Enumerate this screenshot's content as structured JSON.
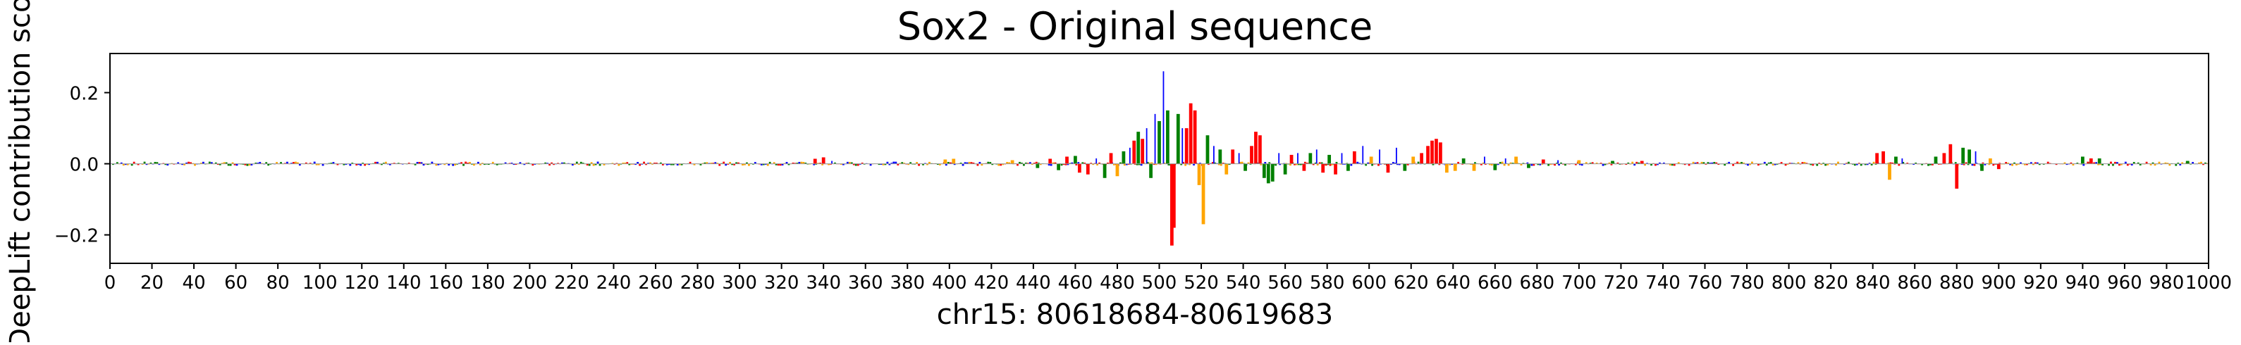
{
  "chart_data": {
    "type": "sequence_logo",
    "title": "Sox2 - Original sequence",
    "xlabel": "chr15: 80618684-80619683",
    "ylabel": "DeepLift contribution score",
    "xlim": [
      0,
      1000
    ],
    "ylim": [
      -0.28,
      0.31
    ],
    "xticks": [
      0,
      20,
      40,
      60,
      80,
      100,
      120,
      140,
      160,
      180,
      200,
      220,
      240,
      260,
      280,
      300,
      320,
      340,
      360,
      380,
      400,
      420,
      440,
      460,
      480,
      500,
      520,
      540,
      560,
      580,
      600,
      620,
      640,
      660,
      680,
      700,
      720,
      740,
      760,
      780,
      800,
      820,
      840,
      860,
      880,
      900,
      920,
      940,
      960,
      980,
      1000
    ],
    "yticks": [
      -0.2,
      0.0,
      0.2
    ],
    "ytick_labels": [
      "−0.2",
      "0.0",
      "0.2"
    ],
    "grid": false,
    "legend": "none",
    "base_colors": {
      "A": "#008000",
      "C": "#0000ff",
      "G": "#ffa500",
      "T": "#ff0000"
    },
    "background_noise": {
      "x_range": [
        0,
        1000
      ],
      "amplitude": 0.006
    },
    "bars": [
      {
        "x": 336,
        "base": "T",
        "value": 0.014
      },
      {
        "x": 340,
        "base": "T",
        "value": 0.018
      },
      {
        "x": 344,
        "base": "C",
        "value": 0.008
      },
      {
        "x": 398,
        "base": "G",
        "value": 0.012
      },
      {
        "x": 402,
        "base": "G",
        "value": 0.014
      },
      {
        "x": 430,
        "base": "G",
        "value": 0.01
      },
      {
        "x": 442,
        "base": "A",
        "value": -0.012
      },
      {
        "x": 448,
        "base": "T",
        "value": 0.014
      },
      {
        "x": 452,
        "base": "A",
        "value": -0.018
      },
      {
        "x": 456,
        "base": "T",
        "value": 0.02
      },
      {
        "x": 460,
        "base": "A",
        "value": 0.022
      },
      {
        "x": 462,
        "base": "T",
        "value": -0.025
      },
      {
        "x": 466,
        "base": "T",
        "value": -0.03
      },
      {
        "x": 470,
        "base": "C",
        "value": 0.015
      },
      {
        "x": 474,
        "base": "A",
        "value": -0.04
      },
      {
        "x": 477,
        "base": "T",
        "value": 0.03
      },
      {
        "x": 480,
        "base": "G",
        "value": -0.035
      },
      {
        "x": 483,
        "base": "A",
        "value": 0.035
      },
      {
        "x": 486,
        "base": "C",
        "value": 0.045
      },
      {
        "x": 488,
        "base": "T",
        "value": 0.065
      },
      {
        "x": 490,
        "base": "A",
        "value": 0.09
      },
      {
        "x": 492,
        "base": "T",
        "value": 0.07
      },
      {
        "x": 494,
        "base": "C",
        "value": 0.1
      },
      {
        "x": 496,
        "base": "A",
        "value": -0.04
      },
      {
        "x": 498,
        "base": "C",
        "value": 0.14
      },
      {
        "x": 500,
        "base": "A",
        "value": 0.12
      },
      {
        "x": 502,
        "base": "C",
        "value": 0.26
      },
      {
        "x": 504,
        "base": "A",
        "value": 0.15
      },
      {
        "x": 506,
        "base": "T",
        "value": -0.23
      },
      {
        "x": 507,
        "base": "T",
        "value": -0.18
      },
      {
        "x": 509,
        "base": "A",
        "value": 0.14
      },
      {
        "x": 511,
        "base": "C",
        "value": 0.1
      },
      {
        "x": 513,
        "base": "T",
        "value": 0.1
      },
      {
        "x": 515,
        "base": "T",
        "value": 0.17
      },
      {
        "x": 517,
        "base": "T",
        "value": 0.15
      },
      {
        "x": 519,
        "base": "G",
        "value": -0.06
      },
      {
        "x": 521,
        "base": "G",
        "value": -0.17
      },
      {
        "x": 523,
        "base": "A",
        "value": 0.08
      },
      {
        "x": 526,
        "base": "C",
        "value": 0.05
      },
      {
        "x": 529,
        "base": "A",
        "value": 0.04
      },
      {
        "x": 532,
        "base": "G",
        "value": -0.03
      },
      {
        "x": 535,
        "base": "T",
        "value": 0.04
      },
      {
        "x": 538,
        "base": "C",
        "value": 0.03
      },
      {
        "x": 541,
        "base": "A",
        "value": -0.02
      },
      {
        "x": 544,
        "base": "T",
        "value": 0.05
      },
      {
        "x": 546,
        "base": "T",
        "value": 0.09
      },
      {
        "x": 548,
        "base": "T",
        "value": 0.08
      },
      {
        "x": 550,
        "base": "A",
        "value": -0.04
      },
      {
        "x": 552,
        "base": "A",
        "value": -0.055
      },
      {
        "x": 554,
        "base": "A",
        "value": -0.05
      },
      {
        "x": 557,
        "base": "C",
        "value": 0.03
      },
      {
        "x": 560,
        "base": "A",
        "value": -0.03
      },
      {
        "x": 563,
        "base": "T",
        "value": 0.025
      },
      {
        "x": 566,
        "base": "C",
        "value": 0.03
      },
      {
        "x": 569,
        "base": "T",
        "value": -0.02
      },
      {
        "x": 572,
        "base": "A",
        "value": 0.03
      },
      {
        "x": 575,
        "base": "C",
        "value": 0.04
      },
      {
        "x": 578,
        "base": "T",
        "value": -0.025
      },
      {
        "x": 581,
        "base": "A",
        "value": 0.025
      },
      {
        "x": 584,
        "base": "T",
        "value": -0.03
      },
      {
        "x": 587,
        "base": "C",
        "value": 0.03
      },
      {
        "x": 590,
        "base": "A",
        "value": -0.02
      },
      {
        "x": 593,
        "base": "T",
        "value": 0.035
      },
      {
        "x": 597,
        "base": "C",
        "value": 0.05
      },
      {
        "x": 601,
        "base": "G",
        "value": 0.02
      },
      {
        "x": 605,
        "base": "C",
        "value": 0.04
      },
      {
        "x": 609,
        "base": "T",
        "value": -0.025
      },
      {
        "x": 613,
        "base": "C",
        "value": 0.045
      },
      {
        "x": 617,
        "base": "A",
        "value": -0.02
      },
      {
        "x": 621,
        "base": "G",
        "value": 0.02
      },
      {
        "x": 625,
        "base": "T",
        "value": 0.03
      },
      {
        "x": 628,
        "base": "T",
        "value": 0.05
      },
      {
        "x": 630,
        "base": "T",
        "value": 0.065
      },
      {
        "x": 632,
        "base": "T",
        "value": 0.07
      },
      {
        "x": 634,
        "base": "T",
        "value": 0.06
      },
      {
        "x": 637,
        "base": "G",
        "value": -0.025
      },
      {
        "x": 641,
        "base": "G",
        "value": -0.02
      },
      {
        "x": 645,
        "base": "A",
        "value": 0.015
      },
      {
        "x": 650,
        "base": "G",
        "value": -0.02
      },
      {
        "x": 655,
        "base": "C",
        "value": 0.02
      },
      {
        "x": 660,
        "base": "A",
        "value": -0.018
      },
      {
        "x": 665,
        "base": "C",
        "value": 0.015
      },
      {
        "x": 670,
        "base": "G",
        "value": 0.02
      },
      {
        "x": 676,
        "base": "A",
        "value": -0.012
      },
      {
        "x": 683,
        "base": "T",
        "value": 0.012
      },
      {
        "x": 690,
        "base": "C",
        "value": 0.01
      },
      {
        "x": 700,
        "base": "G",
        "value": 0.01
      },
      {
        "x": 716,
        "base": "A",
        "value": 0.008
      },
      {
        "x": 730,
        "base": "T",
        "value": 0.008
      },
      {
        "x": 842,
        "base": "T",
        "value": 0.03
      },
      {
        "x": 845,
        "base": "T",
        "value": 0.035
      },
      {
        "x": 848,
        "base": "G",
        "value": -0.045
      },
      {
        "x": 851,
        "base": "A",
        "value": 0.02
      },
      {
        "x": 854,
        "base": "C",
        "value": 0.015
      },
      {
        "x": 870,
        "base": "A",
        "value": 0.02
      },
      {
        "x": 874,
        "base": "T",
        "value": 0.03
      },
      {
        "x": 877,
        "base": "T",
        "value": 0.055
      },
      {
        "x": 880,
        "base": "T",
        "value": -0.07
      },
      {
        "x": 883,
        "base": "A",
        "value": 0.045
      },
      {
        "x": 886,
        "base": "A",
        "value": 0.04
      },
      {
        "x": 889,
        "base": "C",
        "value": 0.035
      },
      {
        "x": 892,
        "base": "A",
        "value": -0.02
      },
      {
        "x": 896,
        "base": "G",
        "value": 0.015
      },
      {
        "x": 900,
        "base": "T",
        "value": -0.015
      },
      {
        "x": 940,
        "base": "A",
        "value": 0.02
      },
      {
        "x": 944,
        "base": "T",
        "value": 0.015
      },
      {
        "x": 948,
        "base": "A",
        "value": 0.015
      },
      {
        "x": 990,
        "base": "A",
        "value": 0.008
      }
    ]
  }
}
